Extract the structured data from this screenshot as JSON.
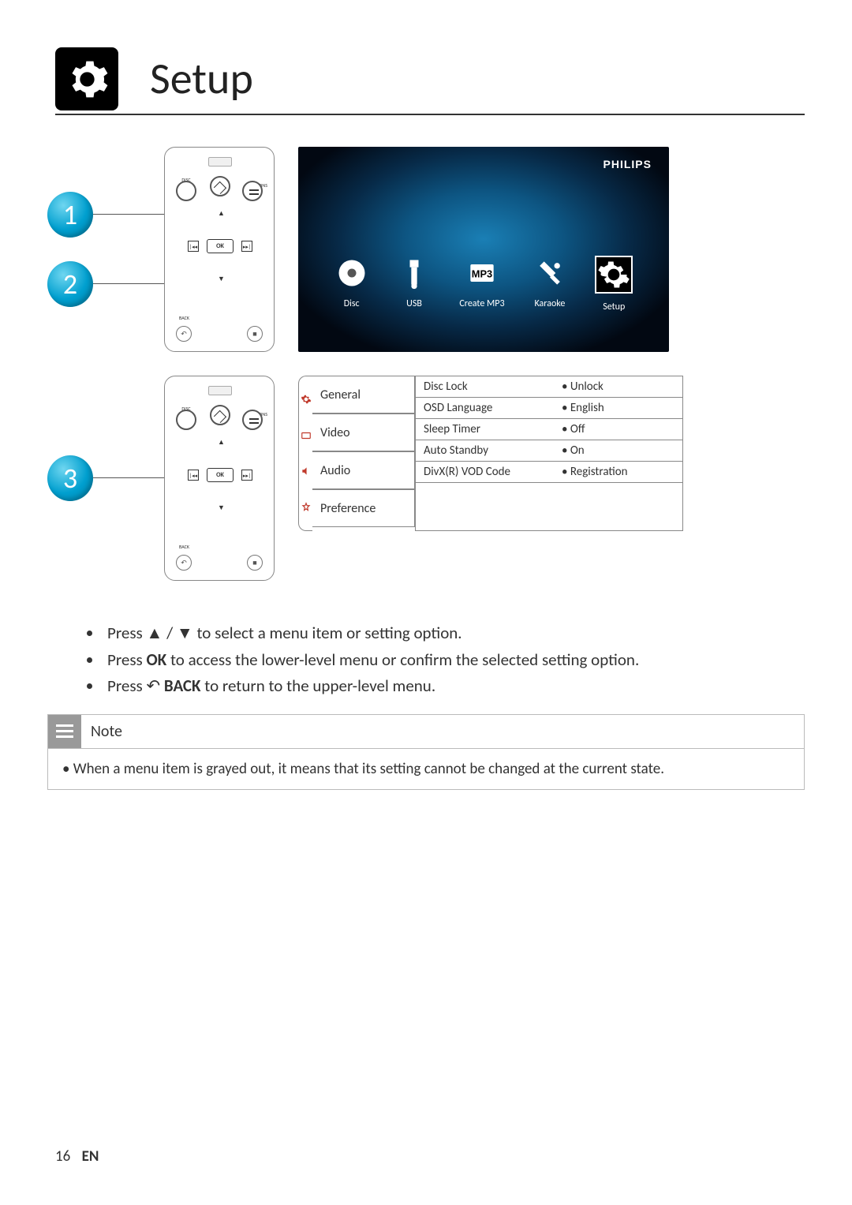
{
  "header": {
    "title": "Setup"
  },
  "steps": [
    "1",
    "2",
    "3"
  ],
  "remote": {
    "disc_menu": "DISC\nMENU",
    "options": "OPTIONS",
    "ok": "OK",
    "back": "BACK",
    "prev": "|◂◂",
    "next": "▸▸|"
  },
  "tv": {
    "brand": "PHILIPS",
    "items": [
      {
        "label": "Disc",
        "icon": "disc"
      },
      {
        "label": "USB",
        "icon": "usb"
      },
      {
        "label": "Create MP3",
        "icon": "mp3"
      },
      {
        "label": "Karaoke",
        "icon": "karaoke"
      },
      {
        "label": "Setup",
        "icon": "setup",
        "selected": true
      }
    ]
  },
  "tabs": [
    "General",
    "Video",
    "Audio",
    "Preference"
  ],
  "settings": [
    {
      "key": "Disc Lock",
      "val": "Unlock"
    },
    {
      "key": "OSD Language",
      "val": "English"
    },
    {
      "key": "Sleep Timer",
      "val": "Off"
    },
    {
      "key": "Auto Standby",
      "val": "On"
    },
    {
      "key": "DivX(R) VOD Code",
      "val": "Registration"
    }
  ],
  "instructions": [
    {
      "pre": "Press ",
      "sym": "▲ / ▼",
      "post": " to select a menu item or setting option."
    },
    {
      "pre": "Press ",
      "bold": "OK",
      "post": " to access the lower-level menu or confirm the selected setting option."
    },
    {
      "pre": "Press ",
      "sym": "↶ ",
      "bold": "BACK",
      "post": " to return to the upper-level menu."
    }
  ],
  "note": {
    "title": "Note",
    "body": "When a menu item is grayed out, it means that its setting cannot be changed at the current state."
  },
  "footer": {
    "page": "16",
    "lang": "EN"
  }
}
